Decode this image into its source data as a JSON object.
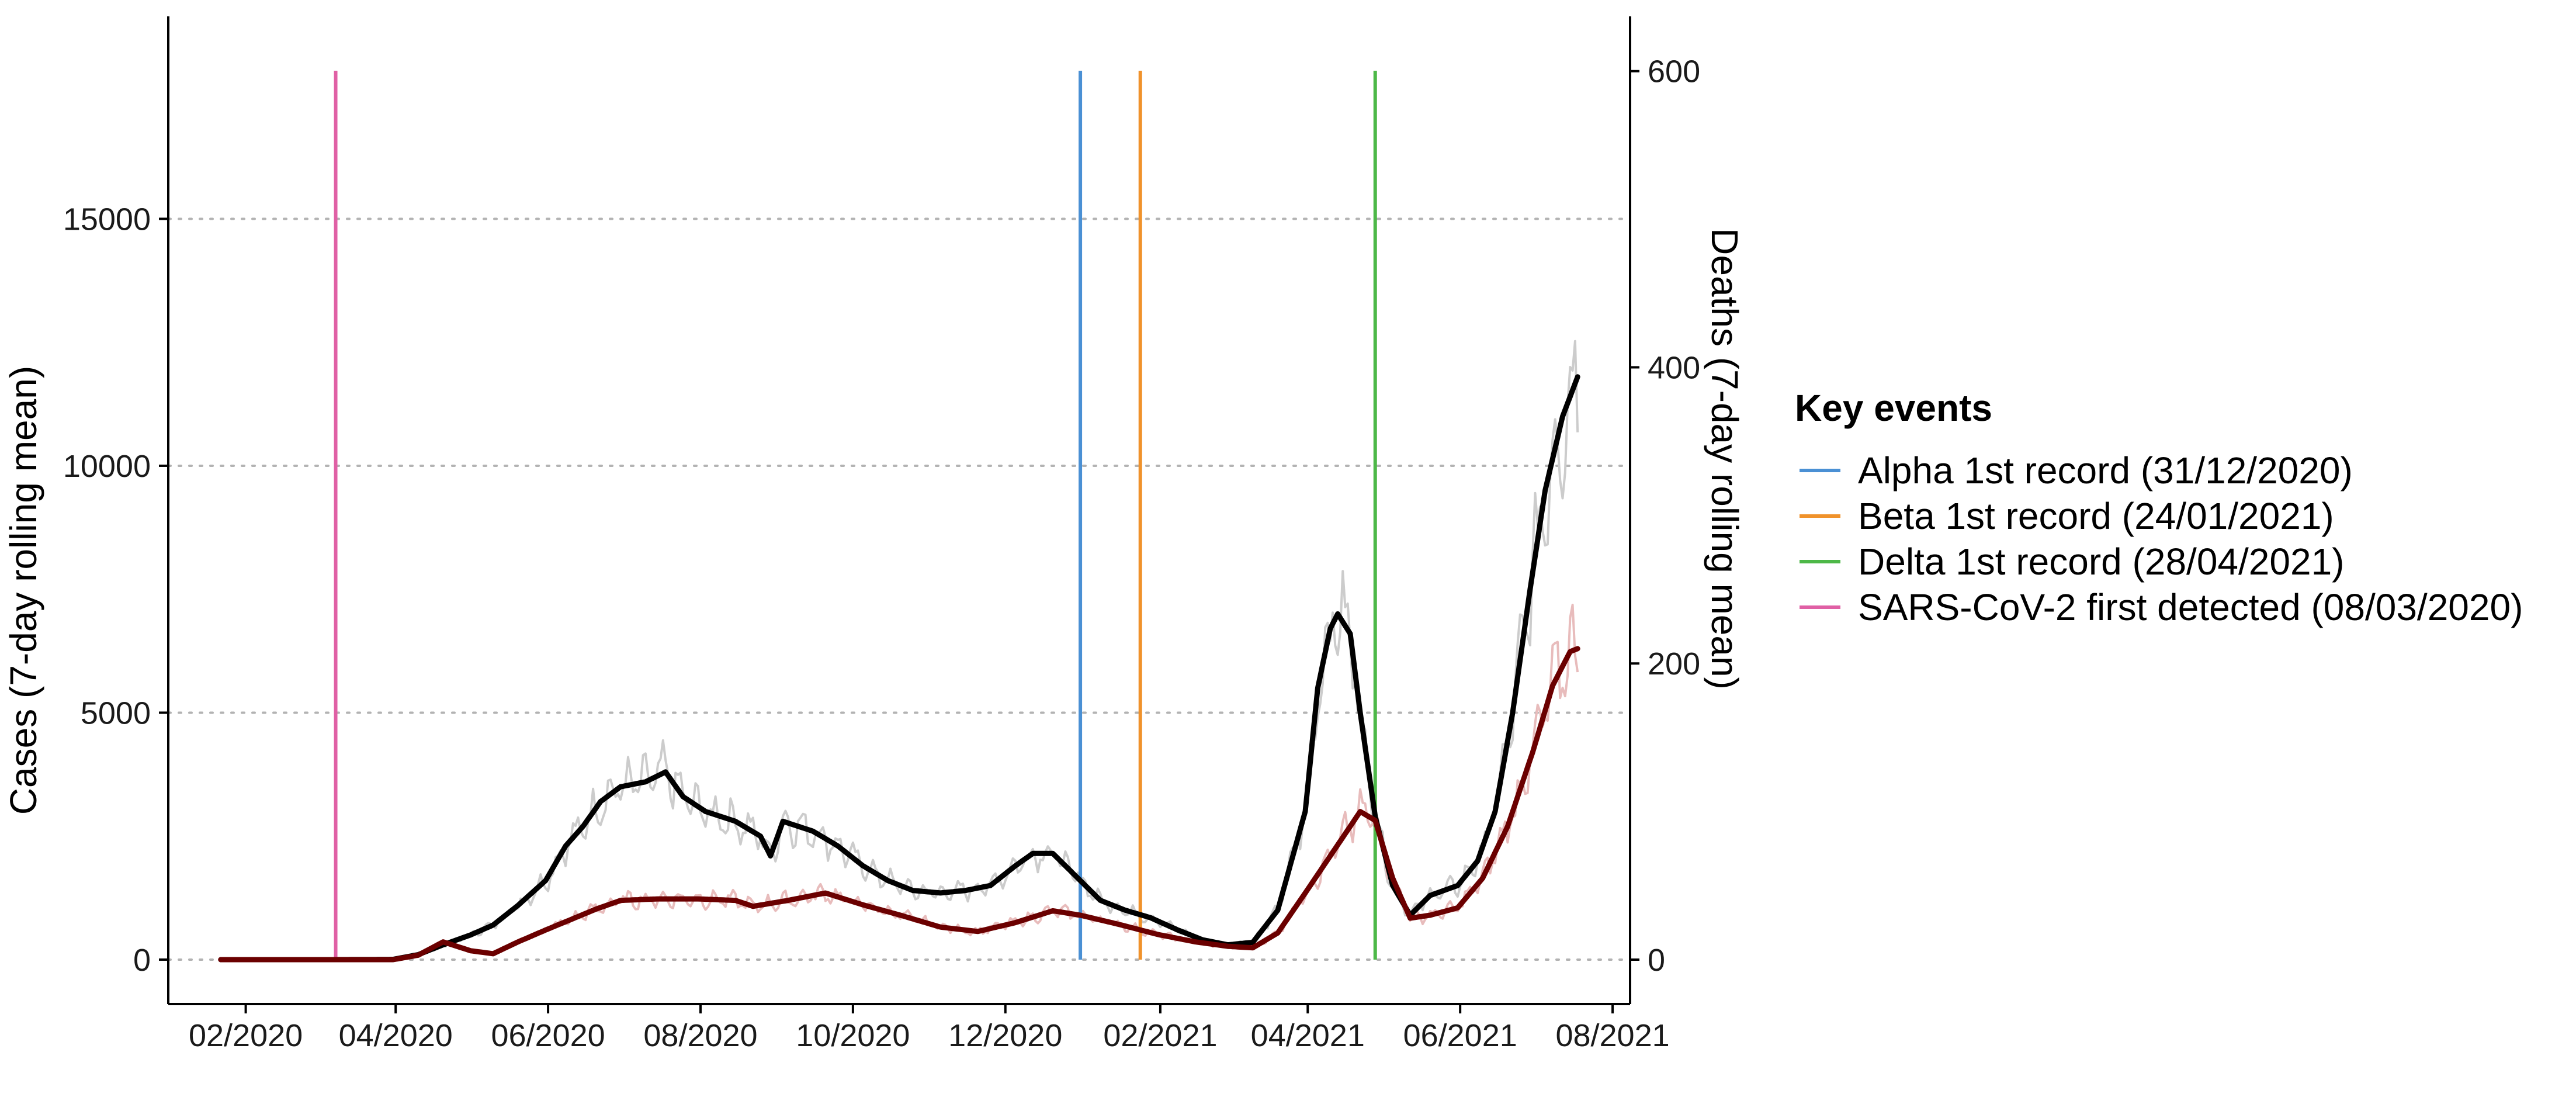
{
  "chart_data": {
    "type": "line",
    "y_left_label": "Cases (7-day rolling mean)",
    "y_right_label": "Deaths (7-day rolling mean)",
    "x_ticks": [
      "02/2020",
      "04/2020",
      "06/2020",
      "08/2020",
      "10/2020",
      "12/2020",
      "02/2021",
      "04/2021",
      "06/2021",
      "08/2021"
    ],
    "x_range": [
      "2020-01-01",
      "2021-08-08"
    ],
    "y_left_ticks": [
      0,
      5000,
      10000,
      15000
    ],
    "y_left_range": [
      -900,
      19100
    ],
    "y_right_ticks": [
      0,
      200,
      400,
      600
    ],
    "y_right_range": [
      -30,
      637
    ],
    "grid": "horizontal dotted",
    "series": [
      {
        "name": "Cases",
        "axis": "left",
        "color": "#000000",
        "raw_color": "#cccccc",
        "points": [
          [
            "2020-01-22",
            0
          ],
          [
            "2020-03-08",
            0
          ],
          [
            "2020-03-31",
            5
          ],
          [
            "2020-04-10",
            100
          ],
          [
            "2020-04-20",
            300
          ],
          [
            "2020-05-01",
            500
          ],
          [
            "2020-05-10",
            700
          ],
          [
            "2020-05-20",
            1100
          ],
          [
            "2020-05-31",
            1600
          ],
          [
            "2020-06-08",
            2300
          ],
          [
            "2020-06-15",
            2700
          ],
          [
            "2020-06-22",
            3200
          ],
          [
            "2020-06-30",
            3500
          ],
          [
            "2020-07-10",
            3600
          ],
          [
            "2020-07-18",
            3800
          ],
          [
            "2020-07-25",
            3300
          ],
          [
            "2020-08-03",
            3000
          ],
          [
            "2020-08-15",
            2800
          ],
          [
            "2020-08-25",
            2500
          ],
          [
            "2020-08-29",
            2100
          ],
          [
            "2020-09-03",
            2800
          ],
          [
            "2020-09-15",
            2600
          ],
          [
            "2020-09-25",
            2300
          ],
          [
            "2020-10-05",
            1900
          ],
          [
            "2020-10-15",
            1600
          ],
          [
            "2020-10-25",
            1400
          ],
          [
            "2020-11-05",
            1350
          ],
          [
            "2020-11-15",
            1400
          ],
          [
            "2020-11-25",
            1500
          ],
          [
            "2020-12-05",
            1900
          ],
          [
            "2020-12-12",
            2150
          ],
          [
            "2020-12-20",
            2150
          ],
          [
            "2020-12-31",
            1600
          ],
          [
            "2021-01-08",
            1200
          ],
          [
            "2021-01-18",
            1000
          ],
          [
            "2021-01-28",
            850
          ],
          [
            "2021-02-08",
            600
          ],
          [
            "2021-02-18",
            400
          ],
          [
            "2021-02-28",
            300
          ],
          [
            "2021-03-10",
            350
          ],
          [
            "2021-03-20",
            1000
          ],
          [
            "2021-03-31",
            3000
          ],
          [
            "2021-04-05",
            5500
          ],
          [
            "2021-04-10",
            6700
          ],
          [
            "2021-04-13",
            7000
          ],
          [
            "2021-04-18",
            6600
          ],
          [
            "2021-04-22",
            5000
          ],
          [
            "2021-04-28",
            2900
          ],
          [
            "2021-05-05",
            1500
          ],
          [
            "2021-05-12",
            900
          ],
          [
            "2021-05-20",
            1300
          ],
          [
            "2021-05-31",
            1500
          ],
          [
            "2021-06-08",
            2000
          ],
          [
            "2021-06-15",
            3000
          ],
          [
            "2021-06-22",
            5000
          ],
          [
            "2021-06-29",
            7500
          ],
          [
            "2021-07-05",
            9500
          ],
          [
            "2021-07-12",
            11000
          ],
          [
            "2021-07-18",
            11800
          ]
        ]
      },
      {
        "name": "Deaths",
        "axis": "right",
        "color": "#6b0000",
        "raw_color": "#e8bcbc",
        "points": [
          [
            "2020-01-22",
            0
          ],
          [
            "2020-03-31",
            0
          ],
          [
            "2020-04-10",
            3
          ],
          [
            "2020-04-20",
            12
          ],
          [
            "2020-05-01",
            6
          ],
          [
            "2020-05-10",
            4
          ],
          [
            "2020-05-20",
            12
          ],
          [
            "2020-05-31",
            20
          ],
          [
            "2020-06-10",
            27
          ],
          [
            "2020-06-20",
            34
          ],
          [
            "2020-06-30",
            40
          ],
          [
            "2020-07-15",
            41
          ],
          [
            "2020-07-31",
            41
          ],
          [
            "2020-08-15",
            40
          ],
          [
            "2020-08-22",
            36
          ],
          [
            "2020-09-05",
            40
          ],
          [
            "2020-09-20",
            45
          ],
          [
            "2020-10-05",
            37
          ],
          [
            "2020-10-20",
            30
          ],
          [
            "2020-11-05",
            22
          ],
          [
            "2020-11-20",
            19
          ],
          [
            "2020-12-05",
            25
          ],
          [
            "2020-12-20",
            33
          ],
          [
            "2020-12-31",
            30
          ],
          [
            "2021-01-15",
            24
          ],
          [
            "2021-01-31",
            17
          ],
          [
            "2021-02-15",
            12
          ],
          [
            "2021-02-28",
            9
          ],
          [
            "2021-03-10",
            8
          ],
          [
            "2021-03-20",
            18
          ],
          [
            "2021-03-31",
            45
          ],
          [
            "2021-04-10",
            70
          ],
          [
            "2021-04-18",
            90
          ],
          [
            "2021-04-22",
            100
          ],
          [
            "2021-04-28",
            94
          ],
          [
            "2021-05-05",
            55
          ],
          [
            "2021-05-12",
            28
          ],
          [
            "2021-05-20",
            30
          ],
          [
            "2021-05-31",
            35
          ],
          [
            "2021-06-10",
            55
          ],
          [
            "2021-06-20",
            90
          ],
          [
            "2021-06-30",
            140
          ],
          [
            "2021-07-08",
            185
          ],
          [
            "2021-07-15",
            208
          ],
          [
            "2021-07-18",
            210
          ]
        ]
      }
    ],
    "events": [
      {
        "label": "Alpha 1st record (31/12/2020)",
        "date": "2020-12-31",
        "color": "#4a90d4"
      },
      {
        "label": "Beta 1st record (24/01/2021)",
        "date": "2021-01-24",
        "color": "#f0922b"
      },
      {
        "label": "Delta 1st record (28/04/2021)",
        "date": "2021-04-28",
        "color": "#4db848"
      },
      {
        "label": "SARS-CoV-2 first detected (08/03/2020)",
        "date": "2020-03-08",
        "color": "#e060a5"
      }
    ],
    "event_top_value": 18000,
    "legend": {
      "title": "Key events",
      "placement": "right"
    }
  }
}
